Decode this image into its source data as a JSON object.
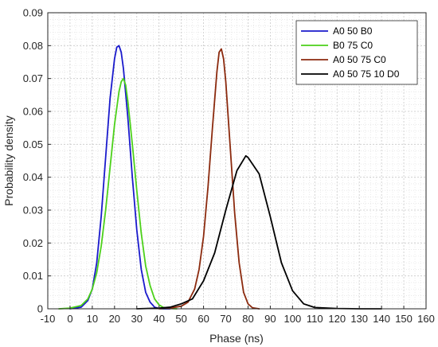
{
  "chart_data": {
    "type": "line",
    "xlabel": "Phase (ns)",
    "ylabel": "Probability density",
    "xlim": [
      -10,
      160
    ],
    "ylim": [
      0,
      0.09
    ],
    "xticks": [
      "-10",
      "0",
      "10",
      "20",
      "30",
      "40",
      "50",
      "60",
      "70",
      "80",
      "90",
      "100",
      "110",
      "120",
      "130",
      "140",
      "150",
      "160"
    ],
    "yticks": [
      "0",
      "0.01",
      "0.02",
      "0.03",
      "0.04",
      "0.05",
      "0.06",
      "0.07",
      "0.08",
      "0.09"
    ],
    "grid": "dotted-minor",
    "legend_position": "top-right",
    "series": [
      {
        "name": "A0 50 B0",
        "color": "#1a1acc",
        "x": [
          0,
          5,
          8,
          10,
          12,
          14,
          16,
          18,
          20,
          21,
          22,
          23,
          24,
          26,
          28,
          30,
          32,
          34,
          36,
          38,
          40,
          42,
          45
        ],
        "y": [
          0,
          0.0005,
          0.0025,
          0.006,
          0.014,
          0.028,
          0.046,
          0.064,
          0.076,
          0.0795,
          0.08,
          0.078,
          0.073,
          0.058,
          0.04,
          0.024,
          0.012,
          0.005,
          0.002,
          0.0005,
          0.0001,
          0,
          0
        ]
      },
      {
        "name": "B0 75 C0",
        "color": "#4cd11a",
        "x": [
          -5,
          0,
          5,
          8,
          10,
          12,
          14,
          16,
          18,
          20,
          22,
          23,
          24,
          25,
          26,
          28,
          30,
          32,
          34,
          36,
          38,
          40,
          42,
          45,
          48
        ],
        "y": [
          0,
          0.0002,
          0.001,
          0.003,
          0.006,
          0.011,
          0.019,
          0.03,
          0.043,
          0.056,
          0.066,
          0.069,
          0.07,
          0.068,
          0.063,
          0.05,
          0.036,
          0.023,
          0.013,
          0.007,
          0.003,
          0.0012,
          0.0004,
          0.0001,
          0
        ]
      },
      {
        "name": "A0 50 75 C0",
        "color": "#8b2a0e",
        "x": [
          40,
          45,
          50,
          53,
          56,
          58,
          60,
          62,
          64,
          66,
          67,
          68,
          69,
          70,
          72,
          74,
          76,
          78,
          80,
          82,
          85
        ],
        "y": [
          0,
          0.0002,
          0.0008,
          0.002,
          0.006,
          0.012,
          0.022,
          0.037,
          0.055,
          0.072,
          0.078,
          0.079,
          0.076,
          0.069,
          0.049,
          0.029,
          0.014,
          0.005,
          0.0015,
          0.0003,
          0
        ]
      },
      {
        "name": "A0 50 75 10 D0",
        "color": "#000000",
        "x": [
          30,
          40,
          45,
          50,
          55,
          60,
          65,
          70,
          75,
          79,
          80,
          85,
          90,
          95,
          100,
          105,
          110,
          120,
          130,
          140
        ],
        "y": [
          0,
          0.0002,
          0.0005,
          0.0015,
          0.003,
          0.0085,
          0.017,
          0.03,
          0.042,
          0.0465,
          0.046,
          0.041,
          0.028,
          0.014,
          0.0055,
          0.0015,
          0.0004,
          0.0001,
          0,
          0
        ]
      }
    ]
  }
}
